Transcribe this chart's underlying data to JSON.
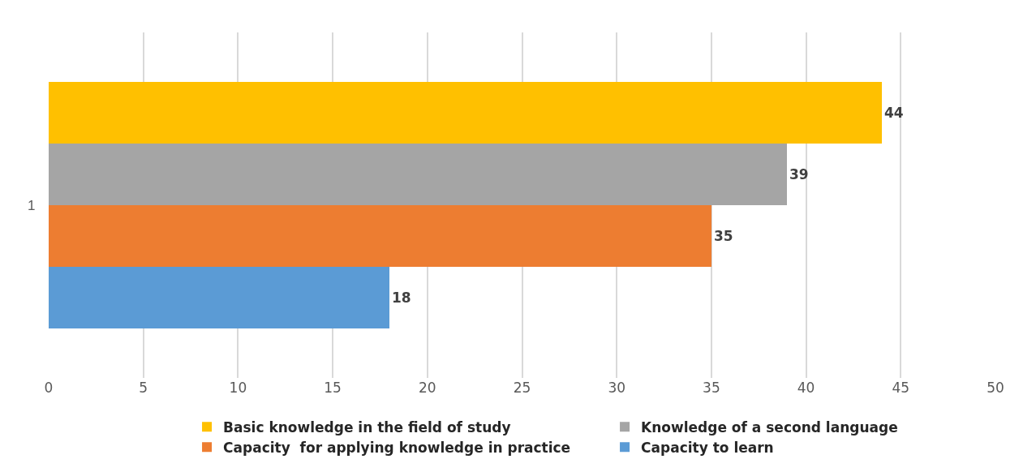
{
  "chart_data": {
    "type": "bar",
    "orientation": "horizontal",
    "stacked": true,
    "categories": [
      null,
      null,
      null,
      null
    ],
    "series": [
      {
        "name": "Basic knowledge in the field of study",
        "color": "#ffc000",
        "values": [
          44,
          null,
          null,
          null
        ]
      },
      {
        "name": "Knowledge of a second language",
        "color": "#a5a5a5",
        "values": [
          null,
          39,
          null,
          null
        ]
      },
      {
        "name": "Capacity  for applying knowledge in practice",
        "color": "#ed7d31",
        "values": [
          null,
          null,
          35,
          null
        ]
      },
      {
        "name": "Capacity to learn",
        "color": "#5b9bd5",
        "values": [
          null,
          null,
          null,
          18
        ]
      }
    ],
    "annotations": [
      "1"
    ],
    "xlim": [
      0,
      50
    ],
    "xticks": [
      0,
      5,
      10,
      15,
      20,
      25,
      30,
      35,
      40,
      45,
      50
    ],
    "grid": "x",
    "legend": "bottom",
    "data_labels": true
  }
}
